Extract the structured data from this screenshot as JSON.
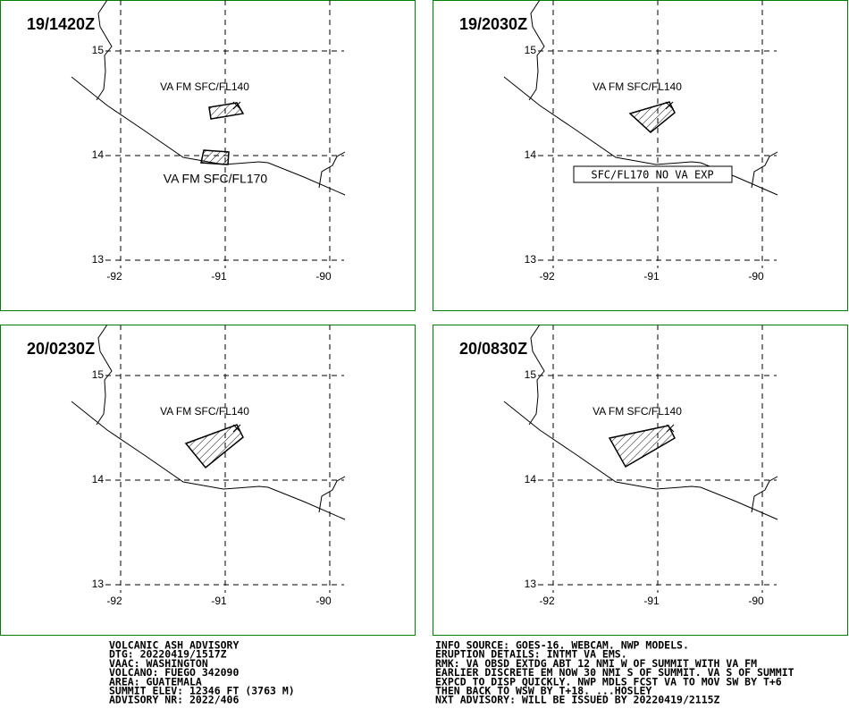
{
  "axes": {
    "lat_labels": [
      "15",
      "14",
      "13"
    ],
    "lon_labels": [
      "-92",
      "-91",
      "-90"
    ]
  },
  "panels": [
    {
      "time": "19/1420Z",
      "labels": [
        "VA FM SFC/FL140",
        "VA FM SFC/FL170"
      ]
    },
    {
      "time": "19/2030Z",
      "labels": [
        "VA FM SFC/FL140",
        "SFC/FL170 NO VA EXP"
      ]
    },
    {
      "time": "20/0230Z",
      "labels": [
        "VA FM SFC/FL140"
      ]
    },
    {
      "time": "20/0830Z",
      "labels": [
        "VA FM SFC/FL140"
      ]
    }
  ],
  "advisory_left": [
    "VOLCANIC ASH ADVISORY",
    "DTG: 20220419/1517Z",
    "VAAC: WASHINGTON",
    "VOLCANO: FUEGO 342090",
    "AREA: GUATEMALA",
    "SUMMIT ELEV: 12346 FT (3763 M)",
    "ADVISORY NR: 2022/406"
  ],
  "advisory_right": [
    "INFO SOURCE: GOES-16. WEBCAM. NWP MODELS.",
    "ERUPTION DETAILS: INTMT VA EMS.",
    "RMK: VA OBSD EXTDG ABT 12 NMI W OF SUMMIT WITH VA FM",
    "EARLIER DISCRETE EM NOW 30 NMI S OF SUMMIT. VA S OF SUMMIT",
    "EXPCD TO DISP QUICKLY. NWP MDLS FCST VA TO MOV SW BY T+6",
    "THEN BACK TO WSW BY T+18. ...HOSLEY",
    "NXT ADVISORY: WILL BE ISSUED BY 20220419/2115Z"
  ]
}
